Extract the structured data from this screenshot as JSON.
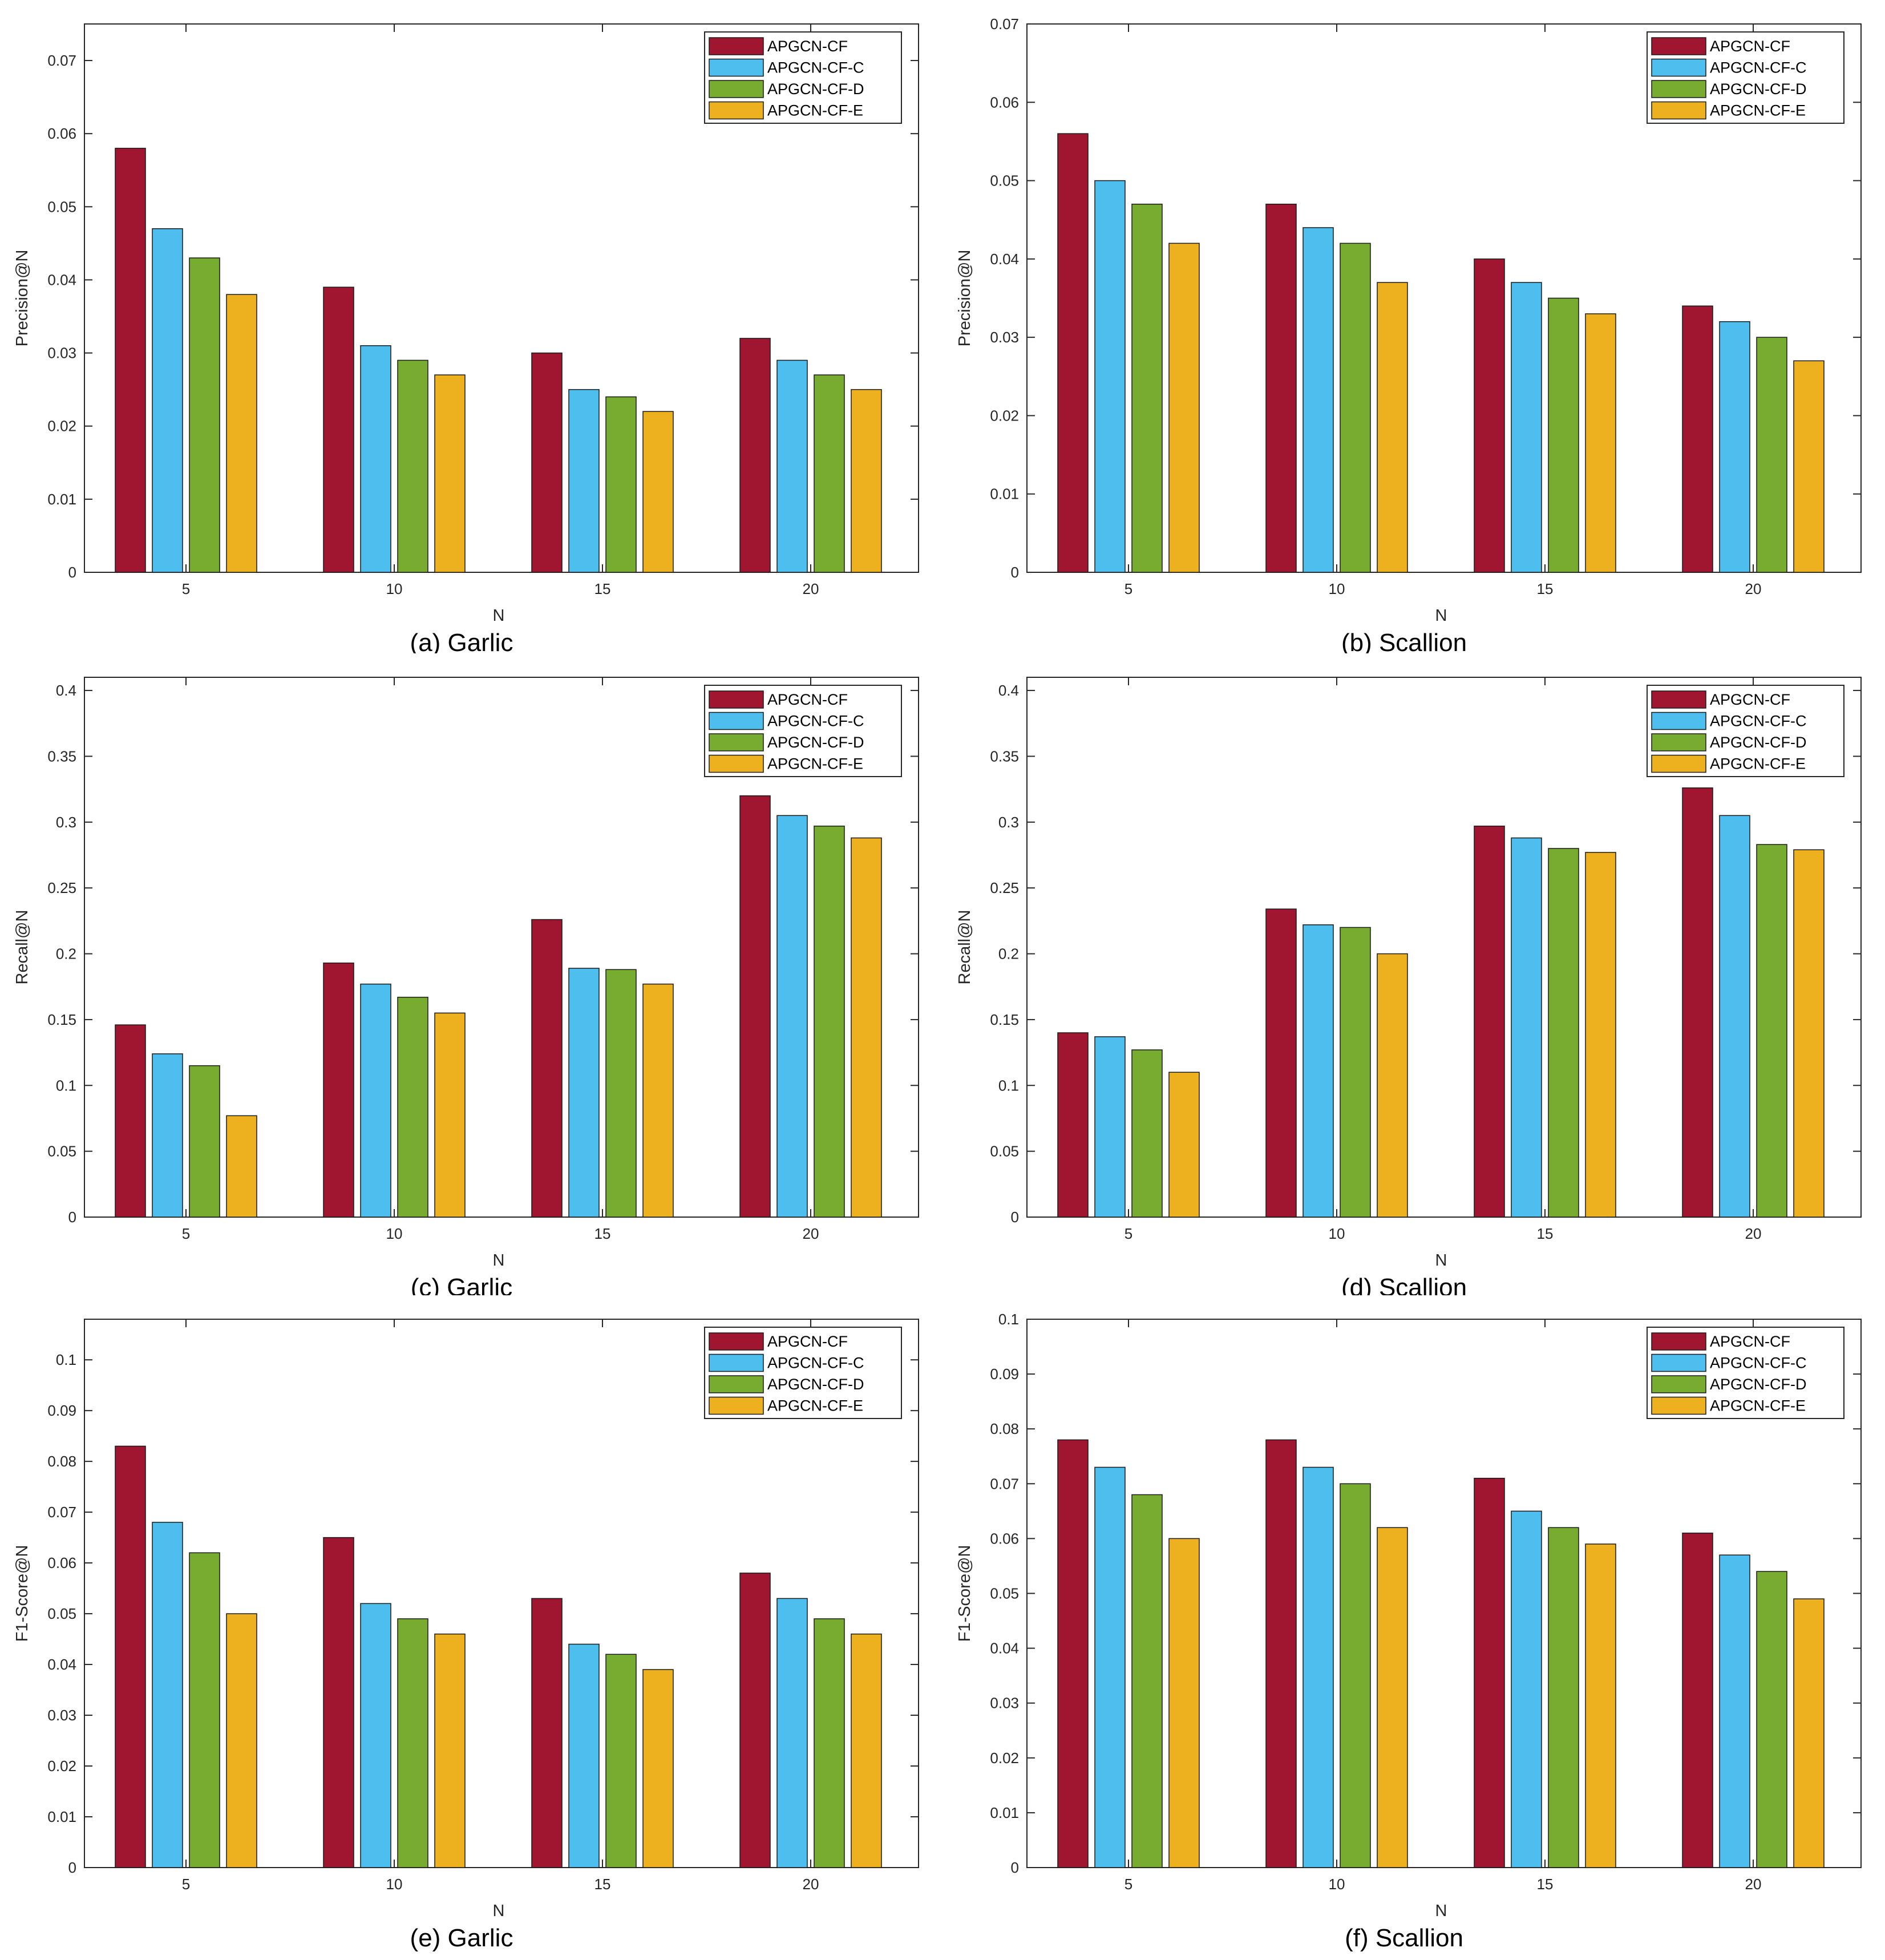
{
  "colors": {
    "series": [
      "#A0152F",
      "#4DBEEE",
      "#77AC30",
      "#EDB120"
    ],
    "axis": "#262626",
    "bar_edge": "#1a1a1a"
  },
  "chart_data": [
    {
      "type": "bar",
      "caption": "(a) Garlic",
      "xlabel": "N",
      "ylabel": "Precision@N",
      "categories": [
        "5",
        "10",
        "15",
        "20"
      ],
      "ylim": [
        0,
        0.075
      ],
      "yticks": [
        0,
        0.01,
        0.02,
        0.03,
        0.04,
        0.05,
        0.06,
        0.07
      ],
      "ytick_labels": [
        "0",
        "0.01",
        "0.02",
        "0.03",
        "0.04",
        "0.05",
        "0.06",
        "0.07"
      ],
      "legend_position": "top-right",
      "series": [
        {
          "name": "APGCN-CF",
          "values": [
            0.058,
            0.039,
            0.03,
            0.032
          ]
        },
        {
          "name": "APGCN-CF-C",
          "values": [
            0.047,
            0.031,
            0.025,
            0.029
          ]
        },
        {
          "name": "APGCN-CF-D",
          "values": [
            0.043,
            0.029,
            0.024,
            0.027
          ]
        },
        {
          "name": "APGCN-CF-E",
          "values": [
            0.038,
            0.027,
            0.022,
            0.025
          ]
        }
      ]
    },
    {
      "type": "bar",
      "caption": "(b) Scallion",
      "xlabel": "N",
      "ylabel": "Precision@N",
      "categories": [
        "5",
        "10",
        "15",
        "20"
      ],
      "ylim": [
        0,
        0.07
      ],
      "yticks": [
        0,
        0.01,
        0.02,
        0.03,
        0.04,
        0.05,
        0.06,
        0.07
      ],
      "ytick_labels": [
        "0",
        "0.01",
        "0.02",
        "0.03",
        "0.04",
        "0.05",
        "0.06",
        "0.07"
      ],
      "legend_position": "top-right",
      "series": [
        {
          "name": "APGCN-CF",
          "values": [
            0.056,
            0.047,
            0.04,
            0.034
          ]
        },
        {
          "name": "APGCN-CF-C",
          "values": [
            0.05,
            0.044,
            0.037,
            0.032
          ]
        },
        {
          "name": "APGCN-CF-D",
          "values": [
            0.047,
            0.042,
            0.035,
            0.03
          ]
        },
        {
          "name": "APGCN-CF-E",
          "values": [
            0.042,
            0.037,
            0.033,
            0.027
          ]
        }
      ]
    },
    {
      "type": "bar",
      "caption": "(c) Garlic",
      "xlabel": "N",
      "ylabel": "Recall@N",
      "categories": [
        "5",
        "10",
        "15",
        "20"
      ],
      "ylim": [
        0,
        0.41
      ],
      "yticks": [
        0,
        0.05,
        0.1,
        0.15,
        0.2,
        0.25,
        0.3,
        0.35,
        0.4
      ],
      "ytick_labels": [
        "0",
        "0.05",
        "0.1",
        "0.15",
        "0.2",
        "0.25",
        "0.3",
        "0.35",
        "0.4"
      ],
      "legend_position": "top-right",
      "series": [
        {
          "name": "APGCN-CF",
          "values": [
            0.146,
            0.193,
            0.226,
            0.32
          ]
        },
        {
          "name": "APGCN-CF-C",
          "values": [
            0.124,
            0.177,
            0.189,
            0.305
          ]
        },
        {
          "name": "APGCN-CF-D",
          "values": [
            0.115,
            0.167,
            0.188,
            0.297
          ]
        },
        {
          "name": "APGCN-CF-E",
          "values": [
            0.077,
            0.155,
            0.177,
            0.288
          ]
        }
      ]
    },
    {
      "type": "bar",
      "caption": "(d) Scallion",
      "xlabel": "N",
      "ylabel": "Recall@N",
      "categories": [
        "5",
        "10",
        "15",
        "20"
      ],
      "ylim": [
        0,
        0.41
      ],
      "yticks": [
        0,
        0.05,
        0.1,
        0.15,
        0.2,
        0.25,
        0.3,
        0.35,
        0.4
      ],
      "ytick_labels": [
        "0",
        "0.05",
        "0.1",
        "0.15",
        "0.2",
        "0.25",
        "0.3",
        "0.35",
        "0.4"
      ],
      "legend_position": "top-right",
      "series": [
        {
          "name": "APGCN-CF",
          "values": [
            0.14,
            0.234,
            0.297,
            0.326
          ]
        },
        {
          "name": "APGCN-CF-C",
          "values": [
            0.137,
            0.222,
            0.288,
            0.305
          ]
        },
        {
          "name": "APGCN-CF-D",
          "values": [
            0.127,
            0.22,
            0.28,
            0.283
          ]
        },
        {
          "name": "APGCN-CF-E",
          "values": [
            0.11,
            0.2,
            0.277,
            0.279
          ]
        }
      ]
    },
    {
      "type": "bar",
      "caption": "(e) Garlic",
      "xlabel": "N",
      "ylabel": "F1-Score@N",
      "categories": [
        "5",
        "10",
        "15",
        "20"
      ],
      "ylim": [
        0,
        0.108
      ],
      "yticks": [
        0,
        0.01,
        0.02,
        0.03,
        0.04,
        0.05,
        0.06,
        0.07,
        0.08,
        0.09,
        0.1
      ],
      "ytick_labels": [
        "0",
        "0.01",
        "0.02",
        "0.03",
        "0.04",
        "0.05",
        "0.06",
        "0.07",
        "0.08",
        "0.09",
        "0.1"
      ],
      "legend_position": "top-right",
      "series": [
        {
          "name": "APGCN-CF",
          "values": [
            0.083,
            0.065,
            0.053,
            0.058
          ]
        },
        {
          "name": "APGCN-CF-C",
          "values": [
            0.068,
            0.052,
            0.044,
            0.053
          ]
        },
        {
          "name": "APGCN-CF-D",
          "values": [
            0.062,
            0.049,
            0.042,
            0.049
          ]
        },
        {
          "name": "APGCN-CF-E",
          "values": [
            0.05,
            0.046,
            0.039,
            0.046
          ]
        }
      ]
    },
    {
      "type": "bar",
      "caption": "(f) Scallion",
      "xlabel": "N",
      "ylabel": "F1-Score@N",
      "categories": [
        "5",
        "10",
        "15",
        "20"
      ],
      "ylim": [
        0,
        0.1
      ],
      "yticks": [
        0,
        0.01,
        0.02,
        0.03,
        0.04,
        0.05,
        0.06,
        0.07,
        0.08,
        0.09,
        0.1
      ],
      "ytick_labels": [
        "0",
        "0.01",
        "0.02",
        "0.03",
        "0.04",
        "0.05",
        "0.06",
        "0.07",
        "0.08",
        "0.09",
        "0.1"
      ],
      "legend_position": "top-right",
      "series": [
        {
          "name": "APGCN-CF",
          "values": [
            0.078,
            0.078,
            0.071,
            0.061
          ]
        },
        {
          "name": "APGCN-CF-C",
          "values": [
            0.073,
            0.073,
            0.065,
            0.057
          ]
        },
        {
          "name": "APGCN-CF-D",
          "values": [
            0.068,
            0.07,
            0.062,
            0.054
          ]
        },
        {
          "name": "APGCN-CF-E",
          "values": [
            0.06,
            0.062,
            0.059,
            0.049
          ]
        }
      ]
    }
  ]
}
